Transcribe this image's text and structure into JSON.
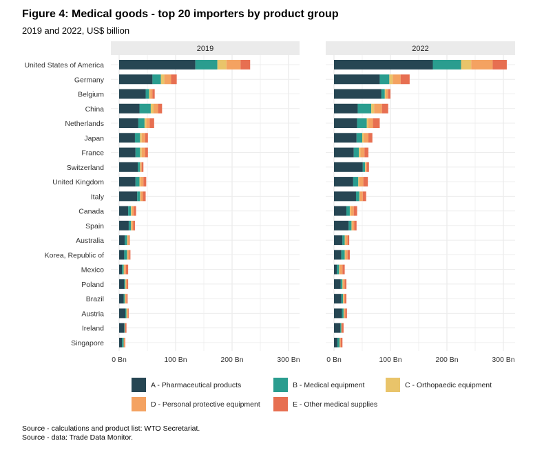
{
  "title": "Figure 4: Medical goods - top 20 importers by product group",
  "subtitle": "2019 and 2022, US$ billion",
  "sources": [
    "Source - calculations  and product list: WTO  Secretariat.",
    "Source - data: Trade Data Monitor."
  ],
  "chart_data": {
    "type": "bar",
    "orientation": "horizontal",
    "stacked": true,
    "facets": [
      "2019",
      "2022"
    ],
    "categories": [
      "United States of America",
      "Germany",
      "Belgium",
      "China",
      "Netherlands",
      "Japan",
      "France",
      "Switzerland",
      "United Kingdom",
      "Italy",
      "Canada",
      "Spain",
      "Australia",
      "Korea, Republic of",
      "Mexico",
      "Poland",
      "Brazil",
      "Austria",
      "Ireland",
      "Singapore"
    ],
    "x_ticks": [
      "0 Bn",
      "100 Bn",
      "200 Bn",
      "300 Bn"
    ],
    "xlim": [
      0,
      320
    ],
    "legend_position": "bottom",
    "series": [
      {
        "name": "A - Pharmaceutical products",
        "color": "#264653",
        "values_2019": [
          135,
          59,
          47,
          36,
          34,
          28,
          29,
          33,
          29,
          32,
          16,
          17,
          10,
          9,
          5,
          9,
          8,
          11,
          9,
          5
        ],
        "values_2022": [
          175,
          81,
          84,
          42,
          41,
          40,
          35,
          51,
          34,
          39,
          22,
          26,
          15,
          13,
          5,
          12,
          13,
          14,
          11,
          6
        ]
      },
      {
        "name": "B - Medical equipment",
        "color": "#2a9d8f",
        "values_2019": [
          39,
          15,
          6,
          20,
          11,
          9,
          8,
          4,
          7,
          5,
          5,
          4,
          4,
          5,
          3,
          2,
          2,
          2,
          1,
          3
        ],
        "values_2022": [
          50,
          17,
          6,
          24,
          17,
          10,
          9,
          4,
          9,
          6,
          6,
          5,
          4,
          6,
          4,
          3,
          3,
          3,
          2,
          4
        ]
      },
      {
        "name": "C - Orthopaedic equipment",
        "color": "#e9c46a",
        "values_2019": [
          16,
          6,
          2,
          5,
          3,
          3,
          3,
          1,
          2,
          1,
          2,
          1,
          1,
          1,
          1,
          1,
          1,
          1,
          0,
          0
        ],
        "values_2022": [
          18,
          6,
          2,
          5,
          3,
          3,
          3,
          1,
          2,
          1,
          2,
          1,
          1,
          1,
          1,
          1,
          1,
          1,
          0,
          0
        ]
      },
      {
        "name": "D - Personal protective equipment",
        "color": "#f4a261",
        "values_2019": [
          25,
          12,
          4,
          8,
          6,
          6,
          6,
          2,
          5,
          4,
          3,
          3,
          3,
          3,
          3,
          2,
          2,
          2,
          1,
          2
        ],
        "values_2022": [
          38,
          14,
          4,
          14,
          8,
          8,
          7,
          2,
          7,
          5,
          5,
          4,
          4,
          4,
          5,
          3,
          2,
          2,
          1,
          2
        ]
      },
      {
        "name": "E - Other medical supplies",
        "color": "#e76f51",
        "values_2019": [
          17,
          10,
          4,
          7,
          8,
          5,
          5,
          3,
          5,
          5,
          4,
          3,
          1,
          2,
          4,
          2,
          2,
          1,
          2,
          1
        ],
        "values_2022": [
          25,
          16,
          4,
          11,
          12,
          7,
          7,
          4,
          8,
          6,
          6,
          4,
          3,
          4,
          4,
          3,
          3,
          3,
          3,
          3
        ]
      }
    ]
  }
}
